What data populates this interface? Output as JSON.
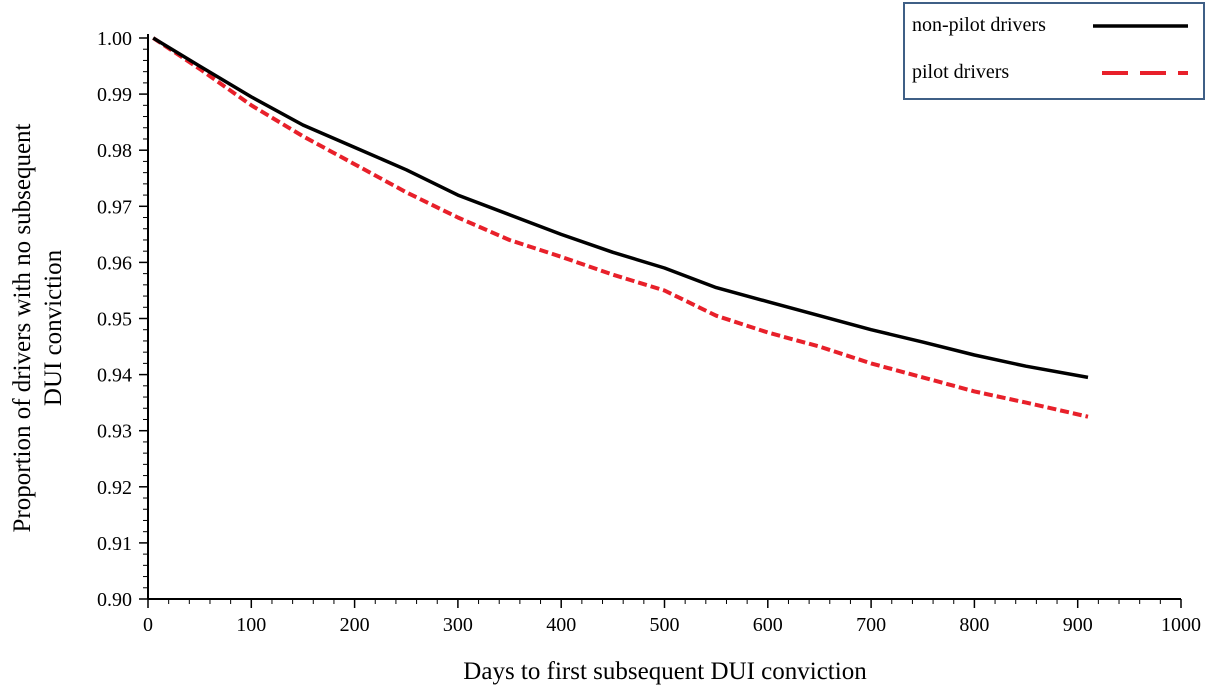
{
  "chart_data": {
    "type": "line",
    "title": "",
    "xlabel": "Days to first subsequent DUI conviction",
    "ylabel_lines": [
      "Proportion of drivers with no subsequent",
      "DUI conviction"
    ],
    "xlim": [
      0,
      1000
    ],
    "ylim": [
      0.9,
      1.0
    ],
    "x_ticks": [
      0,
      100,
      200,
      300,
      400,
      500,
      600,
      700,
      800,
      900,
      1000
    ],
    "x_tick_labels": [
      "0",
      "100",
      "200",
      "300",
      "400",
      "500",
      "600",
      "700",
      "800",
      "900",
      "1000"
    ],
    "y_ticks": [
      0.9,
      0.91,
      0.92,
      0.93,
      0.94,
      0.95,
      0.96,
      0.97,
      0.98,
      0.99,
      1.0
    ],
    "y_tick_labels": [
      "0.90",
      "0.91",
      "0.92",
      "0.93",
      "0.94",
      "0.95",
      "0.96",
      "0.97",
      "0.98",
      "0.99",
      "1.00"
    ],
    "grid": false,
    "legend_position": "top-right",
    "series": [
      {
        "name": "non-pilot drivers",
        "color": "#000000",
        "style": "solid",
        "x": [
          5,
          50,
          100,
          150,
          200,
          250,
          300,
          350,
          400,
          450,
          500,
          550,
          600,
          650,
          700,
          750,
          800,
          850,
          910
        ],
        "y": [
          1.0,
          0.995,
          0.9895,
          0.9845,
          0.9805,
          0.9765,
          0.972,
          0.9685,
          0.965,
          0.9618,
          0.959,
          0.9555,
          0.953,
          0.9505,
          0.948,
          0.9458,
          0.9435,
          0.9415,
          0.9395
        ]
      },
      {
        "name": "pilot drivers",
        "color": "#e8202a",
        "style": "dashed",
        "x": [
          5,
          50,
          100,
          150,
          200,
          250,
          300,
          350,
          400,
          450,
          500,
          550,
          600,
          650,
          700,
          750,
          800,
          850,
          910
        ],
        "y": [
          1.0,
          0.9945,
          0.988,
          0.9825,
          0.9775,
          0.9725,
          0.968,
          0.964,
          0.961,
          0.9578,
          0.955,
          0.9505,
          0.9475,
          0.945,
          0.942,
          0.9395,
          0.937,
          0.935,
          0.9325
        ]
      }
    ]
  }
}
